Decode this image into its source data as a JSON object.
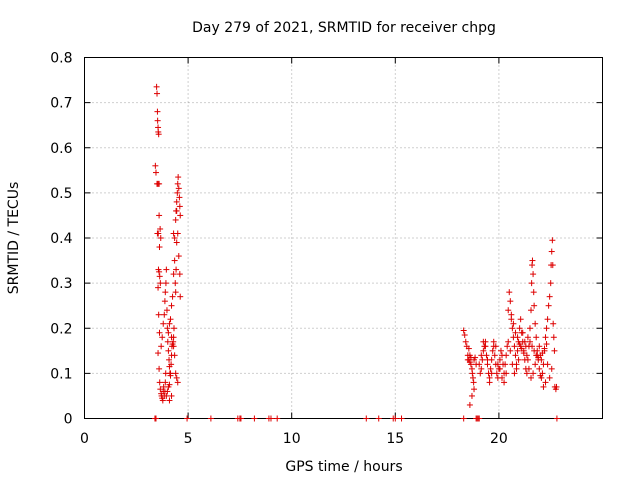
{
  "chart_data": {
    "type": "scatter",
    "title": "Day 279 of 2021, SRMTID for receiver chpg",
    "xlabel": "GPS time / hours",
    "ylabel": "SRMTID / TECUs",
    "xlim": [
      0,
      25
    ],
    "ylim": [
      0,
      0.8
    ],
    "xticks": [
      0,
      5,
      10,
      15,
      20
    ],
    "xtick_labels": [
      "0",
      "5",
      "10",
      "15",
      "20"
    ],
    "yticks": [
      0,
      0.1,
      0.2,
      0.3,
      0.4,
      0.5,
      0.6,
      0.7,
      0.8
    ],
    "ytick_labels": [
      "0",
      "0.1",
      "0.2",
      "0.3",
      "0.4",
      "0.5",
      "0.6",
      "0.7",
      "0.8"
    ],
    "grid": true,
    "marker": "+",
    "color": "#dd0000",
    "series": [
      {
        "name": "SRMTID",
        "points": [
          [
            3.4,
            0.0
          ],
          [
            3.45,
            0.0
          ],
          [
            3.48,
            0.735
          ],
          [
            3.5,
            0.72
          ],
          [
            3.52,
            0.68
          ],
          [
            3.53,
            0.66
          ],
          [
            3.55,
            0.645
          ],
          [
            3.56,
            0.635
          ],
          [
            3.58,
            0.63
          ],
          [
            3.42,
            0.56
          ],
          [
            3.45,
            0.545
          ],
          [
            3.5,
            0.52
          ],
          [
            3.55,
            0.52
          ],
          [
            3.6,
            0.52
          ],
          [
            3.52,
            0.41
          ],
          [
            3.56,
            0.41
          ],
          [
            3.6,
            0.45
          ],
          [
            3.65,
            0.42
          ],
          [
            3.68,
            0.4
          ],
          [
            3.62,
            0.38
          ],
          [
            3.57,
            0.33
          ],
          [
            3.6,
            0.325
          ],
          [
            3.63,
            0.315
          ],
          [
            3.66,
            0.3
          ],
          [
            3.55,
            0.29
          ],
          [
            3.58,
            0.23
          ],
          [
            3.62,
            0.19
          ],
          [
            3.55,
            0.145
          ],
          [
            3.6,
            0.11
          ],
          [
            3.63,
            0.08
          ],
          [
            3.66,
            0.065
          ],
          [
            3.7,
            0.055
          ],
          [
            3.72,
            0.05
          ],
          [
            3.75,
            0.045
          ],
          [
            3.78,
            0.04
          ],
          [
            3.8,
            0.06
          ],
          [
            3.82,
            0.07
          ],
          [
            3.85,
            0.05
          ],
          [
            3.88,
            0.06
          ],
          [
            3.9,
            0.08
          ],
          [
            3.92,
            0.1
          ],
          [
            3.7,
            0.16
          ],
          [
            3.75,
            0.18
          ],
          [
            3.8,
            0.21
          ],
          [
            3.85,
            0.23
          ],
          [
            3.88,
            0.26
          ],
          [
            3.9,
            0.28
          ],
          [
            3.93,
            0.3
          ],
          [
            3.95,
            0.33
          ],
          [
            3.98,
            0.24
          ],
          [
            4.0,
            0.2
          ],
          [
            4.02,
            0.17
          ],
          [
            4.05,
            0.15
          ],
          [
            4.08,
            0.13
          ],
          [
            4.1,
            0.115
          ],
          [
            4.12,
            0.1
          ],
          [
            4.15,
            0.095
          ],
          [
            3.95,
            0.05
          ],
          [
            4.0,
            0.06
          ],
          [
            4.05,
            0.07
          ],
          [
            4.1,
            0.075
          ],
          [
            4.15,
            0.1
          ],
          [
            4.18,
            0.12
          ],
          [
            4.2,
            0.14
          ],
          [
            4.22,
            0.16
          ],
          [
            4.05,
            0.19
          ],
          [
            4.1,
            0.21
          ],
          [
            4.15,
            0.22
          ],
          [
            4.2,
            0.18
          ],
          [
            4.25,
            0.165
          ],
          [
            4.28,
            0.17
          ],
          [
            4.3,
            0.18
          ],
          [
            4.32,
            0.2
          ],
          [
            4.2,
            0.25
          ],
          [
            4.25,
            0.27
          ],
          [
            4.3,
            0.32
          ],
          [
            4.35,
            0.35
          ],
          [
            4.38,
            0.3
          ],
          [
            4.4,
            0.28
          ],
          [
            4.42,
            0.33
          ],
          [
            4.45,
            0.39
          ],
          [
            4.3,
            0.41
          ],
          [
            4.35,
            0.4
          ],
          [
            4.4,
            0.44
          ],
          [
            4.42,
            0.46
          ],
          [
            4.45,
            0.48
          ],
          [
            4.48,
            0.5
          ],
          [
            4.5,
            0.52
          ],
          [
            4.52,
            0.535
          ],
          [
            4.55,
            0.51
          ],
          [
            4.58,
            0.49
          ],
          [
            4.6,
            0.47
          ],
          [
            4.62,
            0.45
          ],
          [
            4.45,
            0.46
          ],
          [
            4.5,
            0.41
          ],
          [
            4.55,
            0.36
          ],
          [
            4.6,
            0.32
          ],
          [
            4.62,
            0.27
          ],
          [
            4.3,
            0.16
          ],
          [
            4.35,
            0.14
          ],
          [
            4.4,
            0.1
          ],
          [
            4.45,
            0.09
          ],
          [
            4.5,
            0.08
          ],
          [
            4.1,
            0.04
          ],
          [
            4.2,
            0.05
          ],
          [
            4.95,
            0.0
          ],
          [
            6.1,
            0.0
          ],
          [
            7.4,
            0.0
          ],
          [
            7.5,
            0.0
          ],
          [
            7.55,
            0.0
          ],
          [
            8.2,
            0.0
          ],
          [
            8.9,
            0.0
          ],
          [
            9.0,
            0.0
          ],
          [
            9.3,
            0.0
          ],
          [
            13.6,
            0.0
          ],
          [
            14.2,
            0.0
          ],
          [
            14.9,
            0.0
          ],
          [
            15.0,
            0.0
          ],
          [
            15.3,
            0.0
          ],
          [
            18.3,
            0.0
          ],
          [
            18.9,
            0.0
          ],
          [
            18.95,
            0.0
          ],
          [
            19.0,
            0.0
          ],
          [
            19.05,
            0.0
          ],
          [
            22.8,
            0.0
          ],
          [
            18.3,
            0.195
          ],
          [
            18.35,
            0.185
          ],
          [
            18.4,
            0.17
          ],
          [
            18.45,
            0.16
          ],
          [
            18.5,
            0.14
          ],
          [
            18.55,
            0.13
          ],
          [
            18.6,
            0.125
          ],
          [
            18.65,
            0.12
          ],
          [
            18.7,
            0.11
          ],
          [
            18.72,
            0.1
          ],
          [
            18.75,
            0.09
          ],
          [
            18.78,
            0.08
          ],
          [
            18.8,
            0.065
          ],
          [
            18.7,
            0.05
          ],
          [
            18.6,
            0.03
          ],
          [
            18.5,
            0.13
          ],
          [
            18.55,
            0.155
          ],
          [
            18.6,
            0.14
          ],
          [
            18.65,
            0.135
          ],
          [
            18.8,
            0.13
          ],
          [
            18.85,
            0.135
          ],
          [
            18.9,
            0.12
          ],
          [
            19.1,
            0.1
          ],
          [
            19.15,
            0.11
          ],
          [
            19.2,
            0.13
          ],
          [
            19.25,
            0.15
          ],
          [
            19.3,
            0.16
          ],
          [
            19.35,
            0.17
          ],
          [
            19.4,
            0.14
          ],
          [
            19.45,
            0.12
          ],
          [
            19.5,
            0.1
          ],
          [
            19.55,
            0.09
          ],
          [
            19.6,
            0.11
          ],
          [
            19.65,
            0.13
          ],
          [
            19.7,
            0.15
          ],
          [
            19.75,
            0.16
          ],
          [
            19.8,
            0.14
          ],
          [
            19.85,
            0.12
          ],
          [
            19.9,
            0.1
          ],
          [
            19.95,
            0.09
          ],
          [
            20.0,
            0.11
          ],
          [
            20.05,
            0.13
          ],
          [
            20.1,
            0.15
          ],
          [
            20.15,
            0.14
          ],
          [
            20.2,
            0.12
          ],
          [
            20.25,
            0.1
          ],
          [
            20.3,
            0.12
          ],
          [
            20.35,
            0.14
          ],
          [
            20.4,
            0.16
          ],
          [
            20.45,
            0.24
          ],
          [
            20.5,
            0.28
          ],
          [
            20.55,
            0.26
          ],
          [
            20.6,
            0.22
          ],
          [
            20.65,
            0.2
          ],
          [
            20.7,
            0.18
          ],
          [
            20.75,
            0.16
          ],
          [
            20.8,
            0.14
          ],
          [
            20.85,
            0.12
          ],
          [
            20.9,
            0.15
          ],
          [
            20.95,
            0.17
          ],
          [
            21.0,
            0.2
          ],
          [
            21.05,
            0.22
          ],
          [
            21.1,
            0.19
          ],
          [
            21.15,
            0.17
          ],
          [
            21.2,
            0.15
          ],
          [
            21.25,
            0.13
          ],
          [
            21.3,
            0.11
          ],
          [
            21.35,
            0.1
          ],
          [
            21.4,
            0.13
          ],
          [
            21.45,
            0.16
          ],
          [
            21.5,
            0.2
          ],
          [
            21.55,
            0.24
          ],
          [
            21.58,
            0.3
          ],
          [
            21.6,
            0.34
          ],
          [
            21.62,
            0.35
          ],
          [
            21.65,
            0.32
          ],
          [
            21.68,
            0.28
          ],
          [
            21.7,
            0.25
          ],
          [
            21.75,
            0.21
          ],
          [
            21.8,
            0.18
          ],
          [
            21.85,
            0.15
          ],
          [
            21.9,
            0.13
          ],
          [
            21.95,
            0.11
          ],
          [
            22.0,
            0.095
          ],
          [
            22.05,
            0.09
          ],
          [
            22.1,
            0.1
          ],
          [
            22.15,
            0.12
          ],
          [
            22.2,
            0.15
          ],
          [
            22.25,
            0.18
          ],
          [
            22.3,
            0.2
          ],
          [
            22.35,
            0.22
          ],
          [
            22.4,
            0.25
          ],
          [
            22.45,
            0.27
          ],
          [
            22.5,
            0.3
          ],
          [
            22.52,
            0.34
          ],
          [
            22.55,
            0.37
          ],
          [
            22.58,
            0.395
          ],
          [
            22.6,
            0.34
          ],
          [
            22.62,
            0.21
          ],
          [
            22.65,
            0.18
          ],
          [
            22.68,
            0.15
          ],
          [
            22.7,
            0.07
          ],
          [
            22.75,
            0.065
          ],
          [
            22.78,
            0.07
          ],
          [
            22.55,
            0.11
          ],
          [
            22.45,
            0.09
          ],
          [
            22.35,
            0.12
          ],
          [
            22.25,
            0.08
          ],
          [
            22.15,
            0.07
          ],
          [
            22.05,
            0.13
          ],
          [
            21.95,
            0.16
          ],
          [
            21.85,
            0.14
          ],
          [
            21.75,
            0.12
          ],
          [
            21.65,
            0.1
          ],
          [
            21.55,
            0.09
          ],
          [
            21.45,
            0.11
          ],
          [
            21.35,
            0.14
          ],
          [
            21.25,
            0.17
          ],
          [
            21.15,
            0.19
          ],
          [
            21.05,
            0.16
          ],
          [
            20.95,
            0.13
          ],
          [
            20.85,
            0.11
          ],
          [
            20.75,
            0.1
          ],
          [
            20.65,
            0.12
          ],
          [
            20.55,
            0.15
          ],
          [
            20.45,
            0.17
          ],
          [
            20.35,
            0.1
          ],
          [
            20.25,
            0.08
          ],
          [
            20.15,
            0.09
          ],
          [
            20.05,
            0.11
          ],
          [
            19.95,
            0.12
          ],
          [
            19.85,
            0.16
          ],
          [
            19.75,
            0.17
          ],
          [
            19.65,
            0.1
          ],
          [
            19.55,
            0.08
          ],
          [
            19.45,
            0.13
          ],
          [
            19.35,
            0.16
          ],
          [
            19.25,
            0.17
          ],
          [
            19.15,
            0.14
          ],
          [
            19.05,
            0.12
          ],
          [
            20.6,
            0.23
          ],
          [
            20.7,
            0.21
          ],
          [
            20.8,
            0.19
          ],
          [
            20.9,
            0.18
          ],
          [
            21.0,
            0.165
          ],
          [
            21.1,
            0.155
          ],
          [
            21.2,
            0.145
          ],
          [
            21.3,
            0.16
          ],
          [
            21.4,
            0.18
          ],
          [
            21.5,
            0.17
          ],
          [
            21.6,
            0.16
          ],
          [
            21.7,
            0.15
          ],
          [
            21.8,
            0.14
          ],
          [
            21.9,
            0.135
          ],
          [
            22.0,
            0.14
          ],
          [
            22.1,
            0.145
          ],
          [
            22.2,
            0.155
          ],
          [
            22.3,
            0.165
          ]
        ]
      }
    ]
  }
}
